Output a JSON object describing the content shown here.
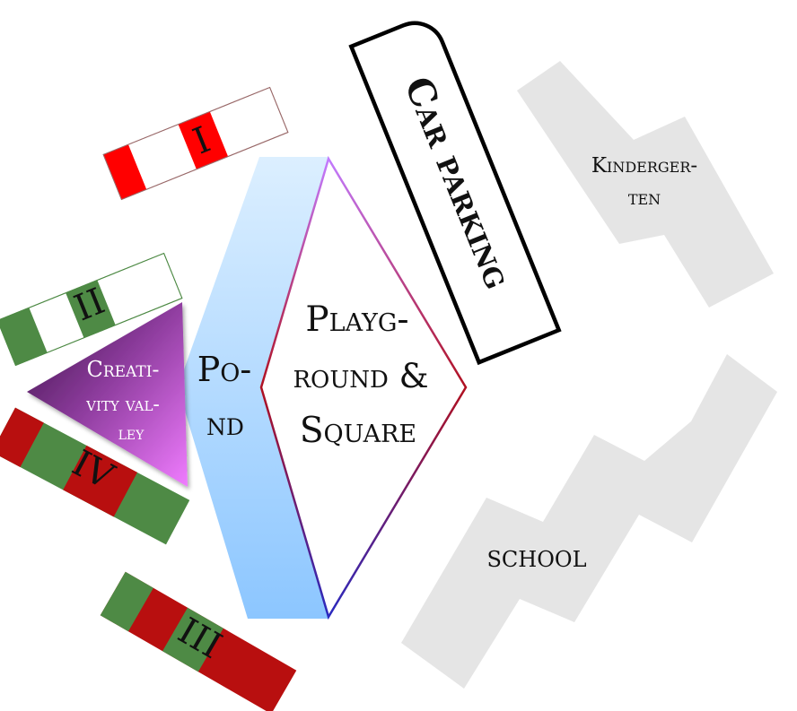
{
  "labels": {
    "car_parking": "Car parking",
    "kindergarten_line1": "Kinderger-",
    "kindergarten_line2": "ten",
    "playground_line1": "Playg-",
    "playground_line2": "round &",
    "playground_line3": "Square",
    "pond_line1": "Po-",
    "pond_line2": "nd",
    "creativity_line1": "Creati-",
    "creativity_line2": "vity val-",
    "creativity_line3": "ley",
    "school": "SCHOOL",
    "block_i": "I",
    "block_ii": "II",
    "block_iii": "III",
    "block_iv": "IV"
  },
  "colors": {
    "red": "#ff0000",
    "dark_red": "#b80f0f",
    "green": "#4e8a45",
    "building_gray": "#e5e5e5",
    "pond_top": "#dcefff",
    "pond_bottom": "#8cc6ff",
    "valley_dark": "#3a1245",
    "valley_light": "#f07cff",
    "diamond_stroke_top": "#c27bff",
    "diamond_stroke_mid": "#b01020",
    "diamond_stroke_bottom": "#2a2ac0"
  }
}
